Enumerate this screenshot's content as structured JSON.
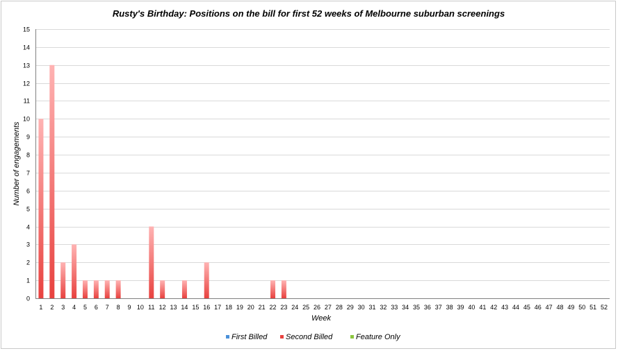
{
  "chart_data": {
    "type": "bar",
    "stacked": true,
    "title": "Rusty's Birthday: Positions on the bill for first 52 weeks of Melbourne suburban screenings",
    "xlabel": "Week",
    "ylabel": "Number of engagements",
    "ylim": [
      0,
      15
    ],
    "yticks": [
      0,
      1,
      2,
      3,
      4,
      5,
      6,
      7,
      8,
      9,
      10,
      11,
      12,
      13,
      14,
      15
    ],
    "grid": true,
    "legend_position": "bottom",
    "categories": [
      "1",
      "2",
      "3",
      "4",
      "5",
      "6",
      "7",
      "8",
      "9",
      "10",
      "11",
      "12",
      "13",
      "14",
      "15",
      "16",
      "17",
      "18",
      "19",
      "20",
      "21",
      "22",
      "23",
      "24",
      "25",
      "26",
      "27",
      "28",
      "29",
      "30",
      "31",
      "32",
      "33",
      "34",
      "35",
      "36",
      "37",
      "38",
      "39",
      "40",
      "41",
      "42",
      "43",
      "44",
      "45",
      "46",
      "47",
      "48",
      "49",
      "50",
      "51",
      "52"
    ],
    "series": [
      {
        "name": "First Billed",
        "color": "#4a90d9",
        "values": [
          0,
          0,
          0,
          0,
          0,
          0,
          0,
          0,
          0,
          0,
          0,
          0,
          0,
          0,
          0,
          0,
          0,
          0,
          0,
          0,
          0,
          0,
          0,
          0,
          0,
          0,
          0,
          0,
          0,
          0,
          0,
          0,
          0,
          0,
          0,
          0,
          0,
          0,
          0,
          0,
          0,
          0,
          0,
          0,
          0,
          0,
          0,
          0,
          0,
          0,
          0,
          0
        ]
      },
      {
        "name": "Second Billed",
        "color": "#e8423f",
        "values": [
          10,
          13,
          2,
          3,
          1,
          1,
          1,
          1,
          0,
          0,
          4,
          1,
          0,
          1,
          0,
          2,
          0,
          0,
          0,
          0,
          0,
          1,
          1,
          0,
          0,
          0,
          0,
          0,
          0,
          0,
          0,
          0,
          0,
          0,
          0,
          0,
          0,
          0,
          0,
          0,
          0,
          0,
          0,
          0,
          0,
          0,
          0,
          0,
          0,
          0,
          0,
          0
        ]
      },
      {
        "name": "Feature Only",
        "color": "#8cc63f",
        "values": [
          0,
          0,
          0,
          0,
          0,
          0,
          0,
          0,
          0,
          0,
          0,
          0,
          0,
          0,
          0,
          0,
          0,
          0,
          0,
          0,
          0,
          0,
          0,
          0,
          0,
          0,
          0,
          0,
          0,
          0,
          0,
          0,
          0,
          0,
          0,
          0,
          0,
          0,
          0,
          0,
          0,
          0,
          0,
          0,
          0,
          0,
          0,
          0,
          0,
          0,
          0,
          0
        ]
      }
    ]
  }
}
